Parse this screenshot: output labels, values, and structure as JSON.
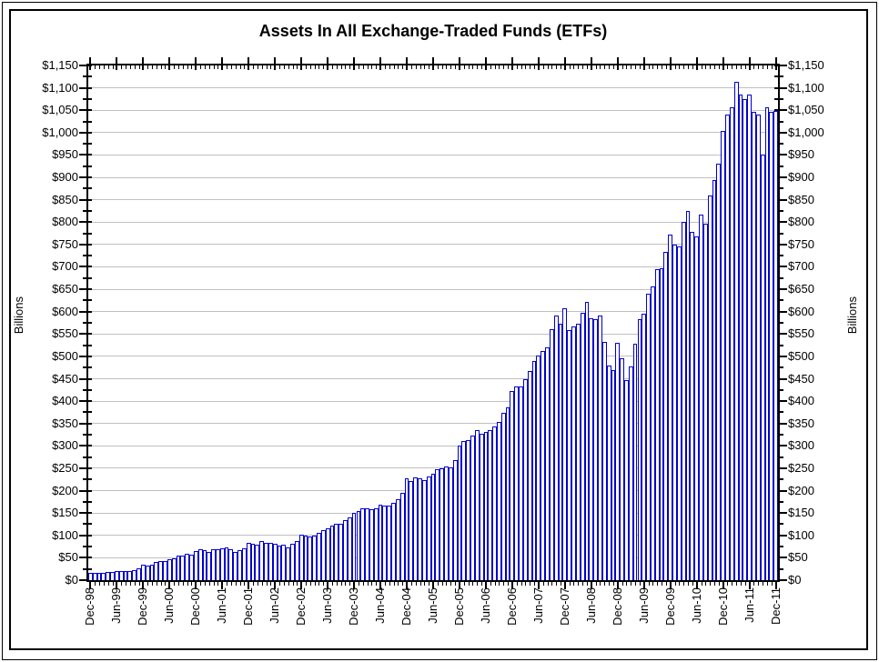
{
  "chart_data": {
    "type": "bar",
    "title": "Assets In All Exchange-Traded Funds (ETFs)",
    "y_axis_label_left": "Billions",
    "y_axis_label_right": "Billions",
    "y_min": 0,
    "y_max": 1150,
    "y_major_step": 50,
    "y_minor_step": 25,
    "y_tick_labels": [
      "$1,150",
      "$1,100",
      "$1,050",
      "$1,000",
      "$950",
      "$900",
      "$850",
      "$800",
      "$750",
      "$700",
      "$650",
      "$600",
      "$550",
      "$500",
      "$450",
      "$400",
      "$350",
      "$300",
      "$250",
      "$200",
      "$150",
      "$100",
      "$50",
      "$0"
    ],
    "x_tick_labels": [
      "Dec-98",
      "Jun-99",
      "Dec-99",
      "Jun-00",
      "Dec-00",
      "Jun-01",
      "Dec-01",
      "Jun-02",
      "Dec-02",
      "Jun-03",
      "Dec-03",
      "Jun-04",
      "Dec-04",
      "Jun-05",
      "Dec-05",
      "Jun-06",
      "Dec-06",
      "Jun-07",
      "Dec-07",
      "Jun-08",
      "Dec-08",
      "Jun-09",
      "Dec-09",
      "Jun-10",
      "Dec-10",
      "Jun-11",
      "Dec-11"
    ],
    "x_label_interval_months": 6,
    "frequency": "monthly",
    "x_start": "Dec-98",
    "x_end": "Dec-11",
    "values_billions": [
      16,
      16,
      16,
      17,
      19,
      18,
      20,
      20,
      21,
      21,
      23,
      26,
      34,
      32,
      35,
      40,
      42,
      42,
      47,
      49,
      54,
      55,
      58,
      56,
      66,
      70,
      67,
      64,
      69,
      70,
      72,
      73,
      70,
      63,
      67,
      72,
      83,
      81,
      80,
      87,
      84,
      84,
      81,
      78,
      79,
      74,
      81,
      87,
      102,
      99,
      98,
      100,
      105,
      112,
      116,
      121,
      125,
      126,
      135,
      140,
      151,
      155,
      160,
      160,
      159,
      160,
      168,
      166,
      167,
      172,
      180,
      196,
      228,
      222,
      230,
      228,
      224,
      232,
      238,
      248,
      250,
      255,
      251,
      268,
      301,
      311,
      313,
      324,
      335,
      328,
      331,
      335,
      344,
      354,
      374,
      387,
      423,
      432,
      432,
      450,
      467,
      490,
      502,
      513,
      520,
      560,
      592,
      574,
      608,
      558,
      567,
      572,
      598,
      621,
      585,
      584,
      592,
      533,
      479,
      470,
      531,
      496,
      447,
      477,
      529,
      583,
      596,
      640,
      657,
      694,
      697,
      734,
      772,
      749,
      745,
      800,
      824,
      778,
      769,
      817,
      797,
      860,
      895,
      930,
      1004,
      1040,
      1056,
      1113,
      1086,
      1075,
      1085,
      1046,
      1041,
      951,
      1057,
      1046,
      1048
    ],
    "colors": {
      "bar_fill": "#FFFFFF",
      "bar_border": "#0000CC",
      "gridline": "#C0C0C0",
      "axis": "#000000",
      "background": "#FFFFFF",
      "text": "#000000"
    },
    "legend_position": "none",
    "grid": "horizontal-major"
  }
}
